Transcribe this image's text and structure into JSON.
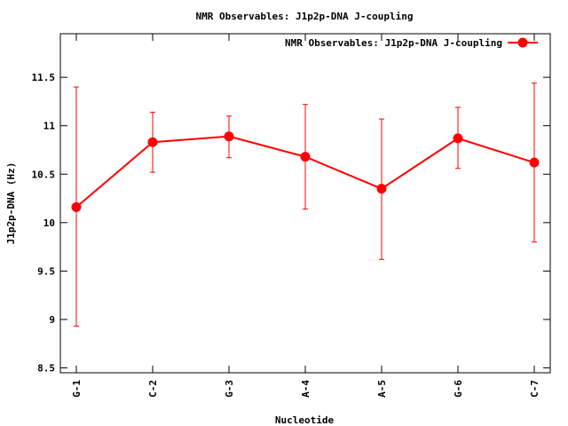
{
  "chart_data": {
    "type": "line",
    "title": "NMR Observables: J1p2p-DNA J-coupling",
    "xlabel": "Nucleotide",
    "ylabel": "J1p2p-DNA (Hz)",
    "categories": [
      "G-1",
      "C-2",
      "G-3",
      "A-4",
      "A-5",
      "G-6",
      "C-7"
    ],
    "ylim": [
      8.45,
      11.95
    ],
    "yticks": [
      8.5,
      9,
      9.5,
      10,
      10.5,
      11,
      11.5
    ],
    "ytick_labels": [
      "8.5",
      "9",
      "9.5",
      "10",
      "10.5",
      "11",
      "11.5"
    ],
    "grid": false,
    "legend_position": "top-right",
    "series": [
      {
        "name": "NMR Observables: J1p2p-DNA J-coupling",
        "color": "#ff0000",
        "values": [
          10.16,
          10.83,
          10.89,
          10.68,
          10.35,
          10.87,
          10.62
        ],
        "err_low": [
          8.93,
          10.52,
          10.67,
          10.14,
          9.62,
          10.56,
          9.8
        ],
        "err_high": [
          11.4,
          11.14,
          11.1,
          11.22,
          11.07,
          11.19,
          11.44
        ]
      }
    ]
  }
}
